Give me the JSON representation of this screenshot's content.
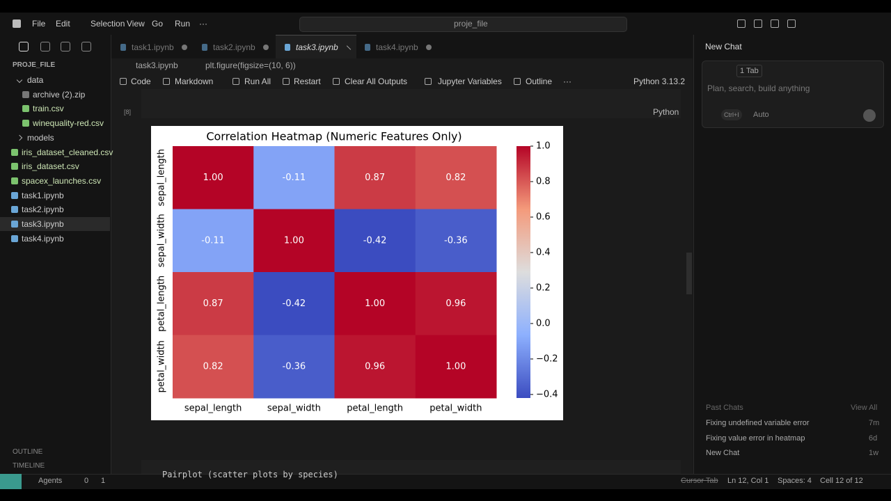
{
  "menu": [
    "File",
    "Edit",
    "Selection",
    "View",
    "Go",
    "Run",
    "···"
  ],
  "search": "proje_file",
  "explorer": {
    "root": "PROJE_FILE",
    "items": [
      "data",
      "archive (2).zip",
      "train.csv",
      "winequality-red.csv",
      "models",
      "iris_dataset_cleaned.csv",
      "iris_dataset.csv",
      "spacex_launches.csv",
      "task1.ipynb",
      "task2.ipynb",
      "task3.ipynb",
      "task4.ipynb"
    ],
    "outline": "OUTLINE",
    "timeline": "TIMELINE"
  },
  "tabs": [
    "task1.ipynb",
    "task2.ipynb",
    "task3.ipynb",
    "task4.ipynb"
  ],
  "breadcrumb": [
    "task3.ipynb",
    "plt.figure(figsize=(10, 6))"
  ],
  "toolbar": [
    "Code",
    "Markdown",
    "Run All",
    "Restart",
    "Clear All Outputs",
    "Jupyter Variables",
    "Outline",
    "···"
  ],
  "kernel": "Python 3.13.2",
  "cell": {
    "count": "[8]",
    "language": "Python"
  },
  "next_cell": "Pairplot (scatter plots by species)",
  "chart_data": {
    "type": "heatmap",
    "title": "Correlation Heatmap (Numeric Features Only)",
    "x_categories": [
      "sepal_length",
      "sepal_width",
      "petal_length",
      "petal_width"
    ],
    "y_categories": [
      "sepal_length",
      "sepal_width",
      "petal_length",
      "petal_width"
    ],
    "values": [
      [
        1,
        -0.11,
        0.87,
        0.82
      ],
      [
        -0.11,
        1,
        -0.42,
        -0.36
      ],
      [
        0.87,
        -0.42,
        1,
        0.96
      ],
      [
        0.82,
        -0.36,
        0.96,
        1
      ]
    ],
    "value_labels": [
      [
        "1.00",
        "-0.11",
        "0.87",
        "0.82"
      ],
      [
        "-0.11",
        "1.00",
        "-0.42",
        "-0.36"
      ],
      [
        "0.87",
        "-0.42",
        "1.00",
        "0.96"
      ],
      [
        "0.82",
        "-0.36",
        "0.96",
        "1.00"
      ]
    ],
    "colormap": [
      "#3b4cc0",
      "#8db0fe",
      "#dddddd",
      "#f49a7b",
      "#b40426"
    ],
    "clim": [
      -0.42,
      1
    ],
    "cticks": [
      {
        "value": 1,
        "label": "1.0"
      },
      0.8,
      0.6,
      0.4,
      0.2,
      {
        "value": 0,
        "label": "0.0"
      },
      {
        "value": -0.2,
        "label": "−0.2"
      },
      {
        "value": -0.4,
        "label": "−0.4"
      }
    ]
  },
  "chat": {
    "title": "New Chat",
    "context": "1 Tab",
    "placeholder": "Plan, search, build anything",
    "shortcut": "Ctrl+I",
    "mode": "Auto",
    "past_title": "Past Chats",
    "view_all": "View All",
    "past": [
      {
        "title": "Fixing undefined variable error",
        "age": "7m"
      },
      {
        "title": "Fixing value error in heatmap",
        "age": "6d"
      },
      {
        "title": "New Chat",
        "age": "1w"
      }
    ]
  },
  "status": {
    "agents": "Agents",
    "errors": "0",
    "warnings": "1",
    "cursor_tab": "Cursor Tab",
    "position": "Ln 12, Col 1",
    "spaces": "Spaces: 4",
    "cell": "Cell 12 of 12"
  }
}
